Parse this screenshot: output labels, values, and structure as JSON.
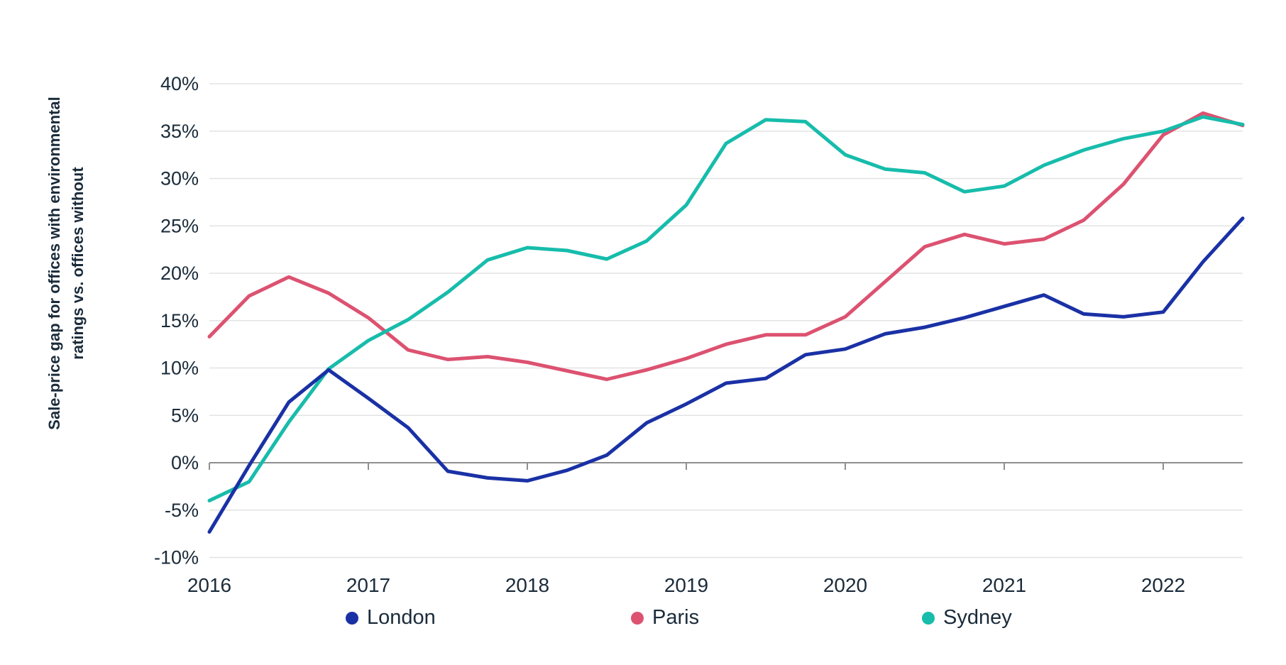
{
  "theme": {
    "background": "#ffffff",
    "text_color": "#1a2b3a",
    "grid_color": "#e3e3e3",
    "axis_color": "#8f8f8f"
  },
  "chart_data": {
    "type": "line",
    "title": "",
    "ylabel": "Sale-price gap for offices with environmental ratings vs. offices without",
    "ylabel_lines": [
      "Sale-price gap for offices with environmental",
      "ratings vs. offices without"
    ],
    "xlabel": "",
    "ylim": [
      -10,
      40
    ],
    "y_step": 5,
    "grid": "horizontal",
    "legend_position": "bottom",
    "x_start_year": 2016,
    "x_step_years": 0.25,
    "x_ticklabels": [
      "2016",
      "2017",
      "2018",
      "2019",
      "2020",
      "2021",
      "2022"
    ],
    "y_ticklabels": [
      "40%",
      "35%",
      "30%",
      "25%",
      "20%",
      "15%",
      "10%",
      "5%",
      "0%",
      "-5%",
      "-10%"
    ],
    "series": [
      {
        "name": "London",
        "color": "#1a31a5",
        "values": [
          -7.3,
          -0.3,
          6.4,
          9.8,
          6.8,
          3.7,
          -0.9,
          -1.6,
          -1.9,
          -0.8,
          0.8,
          4.2,
          6.2,
          8.4,
          8.9,
          11.4,
          12.0,
          13.6,
          14.3,
          15.3,
          16.5,
          17.7,
          15.7,
          15.4,
          15.9,
          21.2,
          25.8
        ]
      },
      {
        "name": "Paris",
        "color": "#dc5270",
        "values": [
          13.3,
          17.6,
          19.6,
          17.9,
          15.3,
          11.9,
          10.9,
          11.2,
          10.6,
          9.7,
          8.8,
          9.8,
          11.0,
          12.5,
          13.5,
          13.5,
          15.4,
          19.1,
          22.8,
          24.1,
          23.1,
          23.6,
          25.6,
          29.4,
          34.6,
          36.9,
          35.6
        ]
      },
      {
        "name": "Sydney",
        "color": "#17bcab",
        "values": [
          -4.0,
          -2.0,
          4.3,
          9.9,
          12.9,
          15.1,
          18.0,
          21.4,
          22.7,
          22.4,
          21.5,
          23.4,
          27.2,
          33.7,
          36.2,
          36.0,
          32.5,
          31.0,
          30.6,
          28.6,
          29.2,
          31.4,
          33.0,
          34.2,
          35.0,
          36.5,
          35.7
        ]
      }
    ]
  }
}
